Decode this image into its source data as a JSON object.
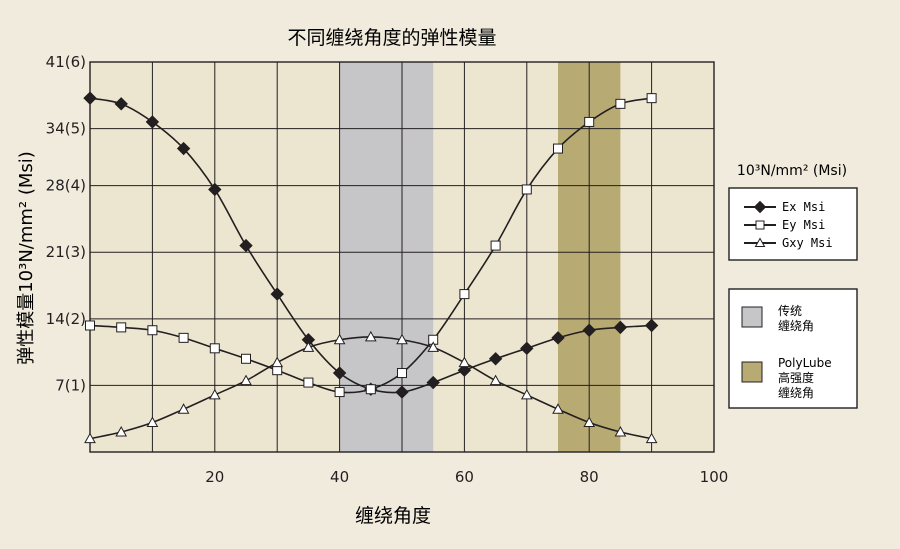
{
  "chart_data": {
    "type": "line",
    "title": "不同缠绕角度的弹性模量",
    "xlabel": "缠绕角度",
    "ylabel": "弹性模量10³N/mm² (Msi)",
    "xlim": [
      0,
      100
    ],
    "ylim": [
      0,
      41
    ],
    "x_ticks": [
      {
        "value": 20,
        "label": "20"
      },
      {
        "value": 40,
        "label": "40"
      },
      {
        "value": 60,
        "label": "60"
      },
      {
        "value": 80,
        "label": "80"
      },
      {
        "value": 100,
        "label": "100"
      }
    ],
    "y_ticks": [
      {
        "value": 7,
        "label": "7(1)"
      },
      {
        "value": 14,
        "label": "14(2)"
      },
      {
        "value": 21,
        "label": "21(3)"
      },
      {
        "value": 28,
        "label": "28(4)"
      },
      {
        "value": 34,
        "label": "34(5)"
      },
      {
        "value": 41,
        "label": "41(6)"
      }
    ],
    "grid": true,
    "legend_title": "10³N/mm² (Msi)",
    "series": [
      {
        "name": "Ex  Msi",
        "marker": "diamond",
        "color": "#231f20",
        "x": [
          0,
          5,
          10,
          15,
          20,
          25,
          30,
          35,
          40,
          45,
          50,
          55,
          60,
          65,
          70,
          75,
          80,
          85,
          90
        ],
        "values": [
          37.2,
          36.6,
          34.7,
          31.9,
          27.6,
          21.7,
          16.6,
          11.8,
          8.3,
          6.6,
          6.3,
          7.3,
          8.6,
          9.8,
          10.9,
          12.0,
          12.8,
          13.1,
          13.3
        ]
      },
      {
        "name": "Ey  Msi",
        "marker": "square",
        "color": "#231f20",
        "x": [
          0,
          5,
          10,
          15,
          20,
          25,
          30,
          35,
          40,
          45,
          50,
          55,
          60,
          65,
          70,
          75,
          80,
          85,
          90
        ],
        "values": [
          13.3,
          13.1,
          12.8,
          12.0,
          10.9,
          9.8,
          8.6,
          7.3,
          6.3,
          6.6,
          8.3,
          11.8,
          16.6,
          21.7,
          27.6,
          31.9,
          34.7,
          36.6,
          37.2
        ]
      },
      {
        "name": "Gxy  Msi",
        "marker": "triangle",
        "color": "#231f20",
        "x": [
          0,
          5,
          10,
          15,
          20,
          25,
          30,
          35,
          40,
          45,
          50,
          55,
          60,
          65,
          70,
          75,
          80,
          85,
          90
        ],
        "values": [
          1.4,
          2.1,
          3.1,
          4.5,
          6.0,
          7.5,
          9.4,
          11.0,
          11.8,
          12.1,
          11.8,
          11.0,
          9.4,
          7.5,
          6.0,
          4.5,
          3.1,
          2.1,
          1.4
        ]
      }
    ],
    "bands": [
      {
        "x_start": 40,
        "x_end": 55,
        "color": "#c6c6c8",
        "label_lines": [
          "传统",
          "缠绕角"
        ]
      },
      {
        "x_start": 75,
        "x_end": 85,
        "color": "#b7ab73",
        "label_lines": [
          "PolyLube",
          "高强度",
          "缠绕角"
        ]
      }
    ],
    "plot_background": "#ece6d1",
    "page_background": "#f1ebdd"
  }
}
